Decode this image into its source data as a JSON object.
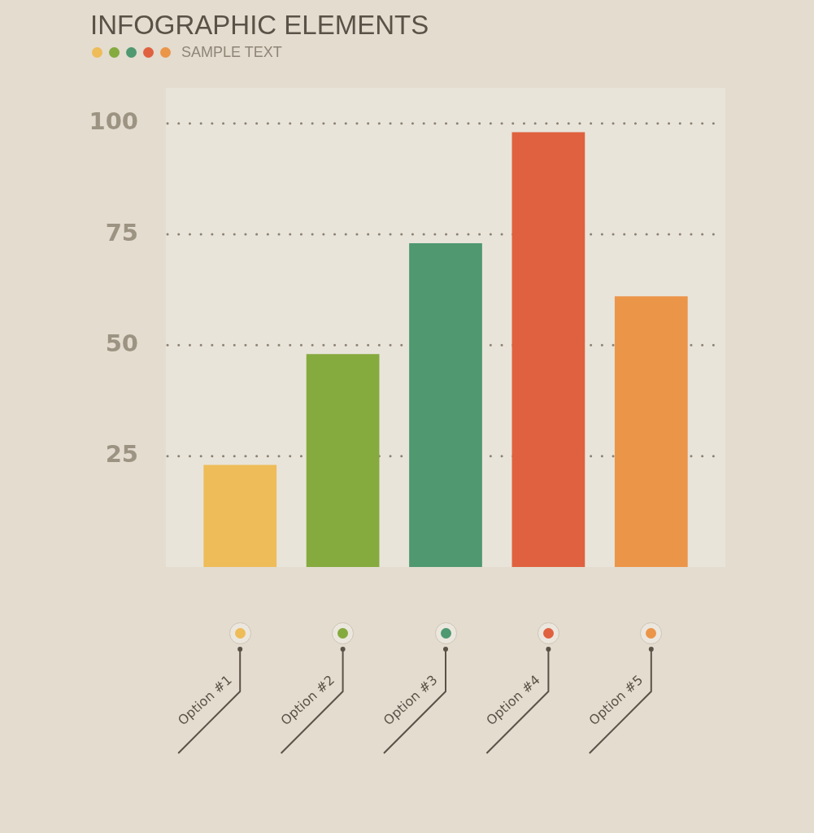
{
  "chart_data": {
    "type": "bar",
    "title": "INFOGRAPHIC ELEMENTS",
    "subtitle": "SAMPLE TEXT",
    "categories": [
      "Option #1",
      "Option #2",
      "Option #3",
      "Option #4",
      "Option #5"
    ],
    "values": [
      23,
      48,
      73,
      98,
      61
    ],
    "colors": [
      "#eebc58",
      "#85aa3e",
      "#4f9870",
      "#e0613f",
      "#eb9549"
    ],
    "ylim": [
      0,
      108
    ],
    "yticks": [
      25,
      50,
      75,
      100
    ],
    "grid": "y"
  }
}
